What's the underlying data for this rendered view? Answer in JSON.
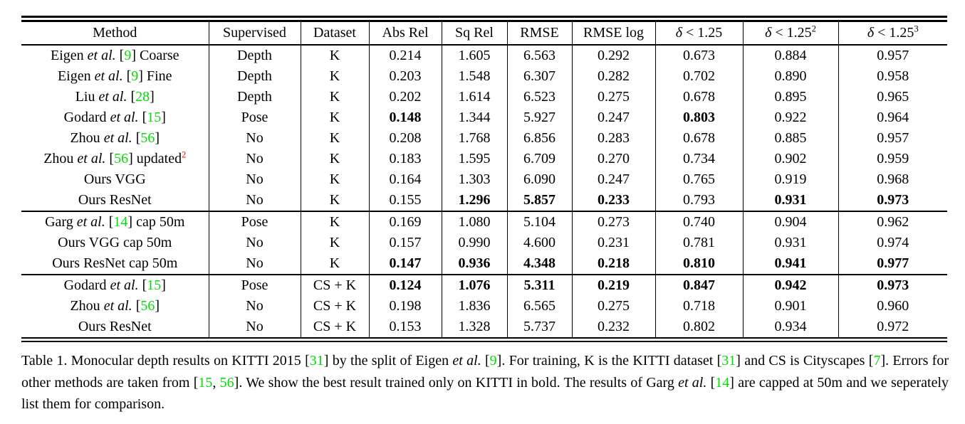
{
  "colors": {
    "citation_green": "#00DD00",
    "footnote_red": "#FF0000"
  },
  "table": {
    "headers": [
      {
        "name": "method",
        "segs": [
          {
            "t": "Method"
          }
        ]
      },
      {
        "name": "supervised",
        "segs": [
          {
            "t": "Supervised"
          }
        ]
      },
      {
        "name": "dataset",
        "segs": [
          {
            "t": "Dataset"
          }
        ]
      },
      {
        "name": "abs-rel",
        "segs": [
          {
            "t": "Abs Rel"
          }
        ]
      },
      {
        "name": "sq-rel",
        "segs": [
          {
            "t": "Sq Rel"
          }
        ]
      },
      {
        "name": "rmse",
        "segs": [
          {
            "t": "RMSE"
          }
        ]
      },
      {
        "name": "rmse-log",
        "segs": [
          {
            "t": "RMSE log"
          }
        ]
      },
      {
        "name": "delta-125",
        "segs": [
          {
            "t": "δ",
            "c": "mi"
          },
          {
            "t": " < 1.25"
          }
        ]
      },
      {
        "name": "delta-125-sq",
        "segs": [
          {
            "t": "δ",
            "c": "mi"
          },
          {
            "t": " < 1.25"
          },
          {
            "t": "2",
            "c": "sup"
          }
        ]
      },
      {
        "name": "delta-125-cu",
        "segs": [
          {
            "t": "δ",
            "c": "mi"
          },
          {
            "t": " < 1.25"
          },
          {
            "t": "3",
            "c": "sup"
          }
        ]
      }
    ],
    "sections": [
      {
        "rows": [
          {
            "method": [
              {
                "t": "Eigen "
              },
              {
                "t": "et al.",
                "c": "i"
              },
              {
                "t": " ["
              },
              {
                "t": "9",
                "c": "g"
              },
              {
                "t": "] Coarse"
              }
            ],
            "supervised": "Depth",
            "dataset": "K",
            "values": [
              "0.214",
              "1.605",
              "6.563",
              "0.292",
              "0.673",
              "0.884",
              "0.957"
            ],
            "bold": []
          },
          {
            "method": [
              {
                "t": "Eigen "
              },
              {
                "t": "et al.",
                "c": "i"
              },
              {
                "t": " ["
              },
              {
                "t": "9",
                "c": "g"
              },
              {
                "t": "] Fine"
              }
            ],
            "supervised": "Depth",
            "dataset": "K",
            "values": [
              "0.203",
              "1.548",
              "6.307",
              "0.282",
              "0.702",
              "0.890",
              "0.958"
            ],
            "bold": []
          },
          {
            "method": [
              {
                "t": "Liu "
              },
              {
                "t": "et al.",
                "c": "i"
              },
              {
                "t": " ["
              },
              {
                "t": "28",
                "c": "g"
              },
              {
                "t": "]"
              }
            ],
            "supervised": "Depth",
            "dataset": "K",
            "values": [
              "0.202",
              "1.614",
              "6.523",
              "0.275",
              "0.678",
              "0.895",
              "0.965"
            ],
            "bold": []
          },
          {
            "method": [
              {
                "t": "Godard "
              },
              {
                "t": "et al.",
                "c": "i"
              },
              {
                "t": " ["
              },
              {
                "t": "15",
                "c": "g"
              },
              {
                "t": "]"
              }
            ],
            "supervised": "Pose",
            "dataset": "K",
            "values": [
              "0.148",
              "1.344",
              "5.927",
              "0.247",
              "0.803",
              "0.922",
              "0.964"
            ],
            "bold": [
              0,
              4
            ]
          },
          {
            "method": [
              {
                "t": "Zhou "
              },
              {
                "t": "et al.",
                "c": "i"
              },
              {
                "t": " ["
              },
              {
                "t": "56",
                "c": "g"
              },
              {
                "t": "]"
              }
            ],
            "supervised": "No",
            "dataset": "K",
            "values": [
              "0.208",
              "1.768",
              "6.856",
              "0.283",
              "0.678",
              "0.885",
              "0.957"
            ],
            "bold": []
          },
          {
            "method": [
              {
                "t": "Zhou "
              },
              {
                "t": "et al.",
                "c": "i"
              },
              {
                "t": " ["
              },
              {
                "t": "56",
                "c": "g"
              },
              {
                "t": "] updated"
              },
              {
                "t": "2",
                "c": "supr"
              }
            ],
            "supervised": "No",
            "dataset": "K",
            "values": [
              "0.183",
              "1.595",
              "6.709",
              "0.270",
              "0.734",
              "0.902",
              "0.959"
            ],
            "bold": []
          },
          {
            "method": [
              {
                "t": "Ours VGG"
              }
            ],
            "supervised": "No",
            "dataset": "K",
            "values": [
              "0.164",
              "1.303",
              "6.090",
              "0.247",
              "0.765",
              "0.919",
              "0.968"
            ],
            "bold": []
          },
          {
            "method": [
              {
                "t": "Ours ResNet"
              }
            ],
            "supervised": "No",
            "dataset": "K",
            "values": [
              "0.155",
              "1.296",
              "5.857",
              "0.233",
              "0.793",
              "0.931",
              "0.973"
            ],
            "bold": [
              1,
              2,
              3,
              5,
              6
            ]
          }
        ]
      },
      {
        "rows": [
          {
            "method": [
              {
                "t": "Garg "
              },
              {
                "t": "et al.",
                "c": "i"
              },
              {
                "t": " ["
              },
              {
                "t": "14",
                "c": "g"
              },
              {
                "t": "] cap 50m"
              }
            ],
            "supervised": "Pose",
            "dataset": "K",
            "values": [
              "0.169",
              "1.080",
              "5.104",
              "0.273",
              "0.740",
              "0.904",
              "0.962"
            ],
            "bold": []
          },
          {
            "method": [
              {
                "t": "Ours VGG cap 50m"
              }
            ],
            "supervised": "No",
            "dataset": "K",
            "values": [
              "0.157",
              "0.990",
              "4.600",
              "0.231",
              "0.781",
              "0.931",
              "0.974"
            ],
            "bold": []
          },
          {
            "method": [
              {
                "t": "Ours ResNet cap 50m"
              }
            ],
            "supervised": "No",
            "dataset": "K",
            "values": [
              "0.147",
              "0.936",
              "4.348",
              "0.218",
              "0.810",
              "0.941",
              "0.977"
            ],
            "bold": [
              0,
              1,
              2,
              3,
              4,
              5,
              6
            ]
          }
        ]
      },
      {
        "rows": [
          {
            "method": [
              {
                "t": "Godard "
              },
              {
                "t": "et al.",
                "c": "i"
              },
              {
                "t": " ["
              },
              {
                "t": "15",
                "c": "g"
              },
              {
                "t": "]"
              }
            ],
            "supervised": "Pose",
            "dataset": "CS + K",
            "values": [
              "0.124",
              "1.076",
              "5.311",
              "0.219",
              "0.847",
              "0.942",
              "0.973"
            ],
            "bold": [
              0,
              1,
              2,
              3,
              4,
              5,
              6
            ]
          },
          {
            "method": [
              {
                "t": "Zhou "
              },
              {
                "t": "et al.",
                "c": "i"
              },
              {
                "t": " ["
              },
              {
                "t": "56",
                "c": "g"
              },
              {
                "t": "]"
              }
            ],
            "supervised": "No",
            "dataset": "CS + K",
            "values": [
              "0.198",
              "1.836",
              "6.565",
              "0.275",
              "0.718",
              "0.901",
              "0.960"
            ],
            "bold": []
          },
          {
            "method": [
              {
                "t": "Ours ResNet"
              }
            ],
            "supervised": "No",
            "dataset": "CS + K",
            "values": [
              "0.153",
              "1.328",
              "5.737",
              "0.232",
              "0.802",
              "0.934",
              "0.972"
            ],
            "bold": []
          }
        ]
      }
    ]
  },
  "caption": {
    "segs": [
      {
        "t": "Table 1. Monocular depth results on KITTI 2015 ["
      },
      {
        "t": "31",
        "c": "g"
      },
      {
        "t": "] by the split of Eigen "
      },
      {
        "t": "et al.",
        "c": "i"
      },
      {
        "t": " ["
      },
      {
        "t": "9",
        "c": "g"
      },
      {
        "t": "]. For training, K is the KITTI dataset ["
      },
      {
        "t": "31",
        "c": "g"
      },
      {
        "t": "] and CS is Cityscapes ["
      },
      {
        "t": "7",
        "c": "g"
      },
      {
        "t": "]. Errors for other methods are taken from ["
      },
      {
        "t": "15",
        "c": "g"
      },
      {
        "t": ", "
      },
      {
        "t": "56",
        "c": "g"
      },
      {
        "t": "]. We show the best result trained only on KITTI in bold. The results of Garg "
      },
      {
        "t": "et al.",
        "c": "i"
      },
      {
        "t": " ["
      },
      {
        "t": "14",
        "c": "g"
      },
      {
        "t": "] are capped at 50m and we seperately list them for comparison."
      }
    ]
  }
}
